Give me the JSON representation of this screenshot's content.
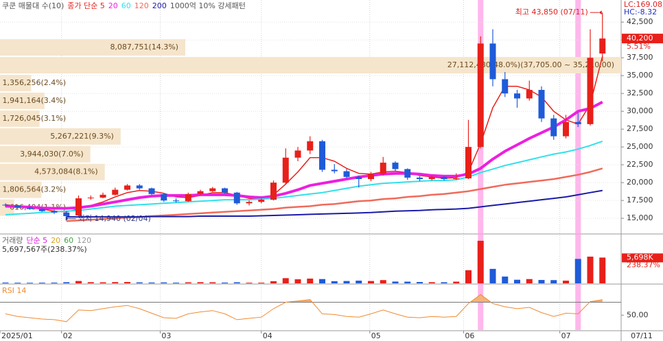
{
  "chart_data": {
    "type": "candlestick",
    "categories": [
      null,
      null,
      null,
      null,
      null,
      null,
      null,
      null,
      null,
      null,
      null,
      null,
      null,
      null,
      null,
      null,
      null,
      null,
      null,
      null,
      null,
      null,
      null,
      null,
      null,
      null,
      null,
      null,
      null,
      null,
      null,
      null,
      null,
      null,
      null,
      null,
      null,
      null,
      null,
      null,
      null,
      null,
      null,
      null,
      null,
      null,
      null,
      null,
      null,
      null
    ],
    "open": [
      16900,
      16800,
      16500,
      16300,
      16000,
      15800,
      15400,
      17800,
      17900,
      18300,
      19000,
      19600,
      19200,
      18400,
      17500,
      17400,
      18400,
      18800,
      19200,
      18600,
      17100,
      17300,
      17600,
      20000,
      23500,
      24500,
      25800,
      21800,
      21600,
      20800,
      20500,
      21200,
      22800,
      21900,
      20700,
      20500,
      20800,
      20500,
      20600,
      25000,
      39500,
      34500,
      32500,
      31800,
      33000,
      29000,
      26500,
      28500,
      28200,
      38100
    ],
    "high": [
      17100,
      16900,
      16700,
      16400,
      16200,
      16000,
      18200,
      18200,
      18600,
      19300,
      19800,
      19800,
      19300,
      18500,
      17800,
      18600,
      19000,
      19400,
      19300,
      18700,
      17500,
      17800,
      20300,
      24800,
      25000,
      26500,
      26000,
      22600,
      21900,
      21000,
      21500,
      23600,
      23000,
      22000,
      20900,
      21000,
      20900,
      21300,
      28800,
      40500,
      41500,
      35500,
      33000,
      34300,
      33500,
      29500,
      29500,
      29800,
      41500,
      43850
    ],
    "low": [
      16600,
      16400,
      16200,
      15900,
      15600,
      14940,
      15300,
      17600,
      17800,
      18200,
      18900,
      19000,
      18300,
      17300,
      17200,
      17300,
      18300,
      18700,
      18400,
      16900,
      16800,
      17100,
      17500,
      19800,
      23000,
      24000,
      21500,
      21300,
      20600,
      19300,
      20200,
      21000,
      21600,
      20400,
      20200,
      20300,
      20300,
      20400,
      20500,
      24800,
      33500,
      32000,
      30500,
      31500,
      28500,
      26000,
      26200,
      27800,
      28000,
      37000
    ],
    "close": [
      16800,
      16500,
      16300,
      16000,
      15800,
      15300,
      17800,
      17900,
      18300,
      19000,
      19600,
      19200,
      18400,
      17500,
      17400,
      18400,
      18800,
      19200,
      18600,
      17100,
      17300,
      17600,
      20000,
      23500,
      24500,
      25800,
      21800,
      21600,
      20800,
      20500,
      21200,
      22800,
      21900,
      20700,
      20500,
      20800,
      20500,
      20600,
      25000,
      39500,
      34500,
      32500,
      31800,
      33000,
      29000,
      26500,
      28500,
      28200,
      37500,
      40200
    ],
    "up_color": "#e8201a",
    "down_color": "#1f5bd8",
    "ylim": [
      12900,
      45600
    ],
    "yticks": [
      {
        "value": 15000,
        "label": "15,000"
      },
      {
        "value": 17500,
        "label": "17,500"
      },
      {
        "value": 20000,
        "label": "20,000"
      },
      {
        "value": 22500,
        "label": "22,500"
      },
      {
        "value": 25000,
        "label": "25,000"
      },
      {
        "value": 27500,
        "label": "27,500"
      },
      {
        "value": 30000,
        "label": "30,000"
      },
      {
        "value": 32500,
        "label": "32,500"
      },
      {
        "value": 35000,
        "label": "35,000"
      },
      {
        "value": 37500,
        "label": "37,500"
      },
      {
        "value": 40000,
        "label": "40,000"
      },
      {
        "value": 42500,
        "label": "42,500"
      }
    ],
    "xticks": [
      {
        "value": -0.45,
        "label": "2025/01"
      },
      {
        "value": 4.6,
        "label": "02"
      },
      {
        "value": 12.7,
        "label": "03"
      },
      {
        "value": 21,
        "label": "04"
      },
      {
        "value": 29.9,
        "label": "05"
      },
      {
        "value": 37.6,
        "label": "06"
      },
      {
        "value": 45.5,
        "label": "07"
      }
    ],
    "last_date": "07/11",
    "grid": true,
    "last_price_label": "40,200",
    "last_change_label": "5.51%",
    "indicator_labels": [
      {
        "text": "LC:169.08",
        "color": "#e02020"
      },
      {
        "text": "HC:-8.32",
        "color": "#2030c0"
      }
    ],
    "annotations": [
      {
        "text": "최고 43,850 (07/11)",
        "value": 43850,
        "index": 49,
        "side": "left",
        "color": "#e02020"
      },
      {
        "text": "최저 14,940 (02/04)",
        "value": 14940,
        "index": 5,
        "side": "right",
        "color": "#2a3a8a"
      }
    ],
    "profile": {
      "title": "쿠쿤 매물대 수(10)",
      "title_color": "#555555",
      "color": "#f5e5cc",
      "label_color": "#6b4a1e",
      "edges": [
        40200,
        37705,
        35210,
        32715,
        30220,
        27725,
        25230,
        22735,
        20240,
        17745,
        15250
      ],
      "values": [
        8087751,
        27112480,
        1356256,
        1941164,
        1726045,
        5267221,
        3944030,
        4573084,
        1806564,
        616404
      ],
      "value_labels": [
        "8,087,751(14.3%)",
        "27,112,480(48.0%)(37,705.00 ~ 35,210.00)",
        "1,356,256(2.4%)",
        "1,941,164(3.4%)",
        "1,726,045(3.1%)",
        "5,267,221(9.3%)",
        "3,944,030(7.0%)",
        "4,573,084(8.1%)",
        "1,806,564(3.2%)",
        "616,404(1.1%)"
      ]
    },
    "series": [
      {
        "name": "종가 단순 5",
        "color": "#e8201a",
        "width": 1.5,
        "values": [
          16900,
          16700,
          16500,
          16300,
          16000,
          15900,
          16300,
          16800,
          17300,
          18000,
          18600,
          18900,
          18800,
          18500,
          18000,
          17900,
          18200,
          18600,
          18600,
          18200,
          17800,
          17600,
          18300,
          19800,
          21500,
          23500,
          23500,
          23000,
          22000,
          21300,
          21200,
          21500,
          21600,
          21400,
          21000,
          20800,
          20600,
          20700,
          21500,
          25500,
          30500,
          33500,
          33500,
          33000,
          32000,
          30000,
          28800,
          28200,
          31000,
          37700
        ]
      },
      {
        "name": "20",
        "color": "#ee1ee0",
        "width": 4,
        "values": [
          16700,
          16650,
          16550,
          16450,
          16400,
          16400,
          16500,
          16700,
          17000,
          17300,
          17600,
          17900,
          18100,
          18200,
          18200,
          18200,
          18300,
          18300,
          18300,
          18200,
          18000,
          17900,
          18100,
          18500,
          19000,
          19600,
          19900,
          20200,
          20500,
          20800,
          21000,
          21200,
          21300,
          21300,
          21200,
          21000,
          20900,
          20900,
          21200,
          22000,
          23300,
          24400,
          25300,
          26200,
          27000,
          27800,
          28800,
          30000,
          30400,
          31300
        ]
      },
      {
        "name": "60",
        "color": "#30e0ea",
        "width": 2,
        "values": [
          15500,
          15600,
          15700,
          15800,
          15900,
          16000,
          16100,
          16300,
          16500,
          16700,
          16800,
          16900,
          17000,
          17100,
          17200,
          17300,
          17400,
          17500,
          17600,
          17600,
          17600,
          17700,
          17800,
          18000,
          18200,
          18400,
          18600,
          18900,
          19200,
          19500,
          19700,
          19900,
          20000,
          20100,
          20200,
          20300,
          20300,
          20400,
          20800,
          21400,
          21900,
          22400,
          22800,
          23200,
          23600,
          24000,
          24300,
          24700,
          25200,
          25800
        ]
      },
      {
        "name": "120",
        "color": "#f06a5a",
        "width": 2.5,
        "values": [
          null,
          null,
          null,
          null,
          null,
          14600,
          14700,
          14800,
          14900,
          15000,
          15100,
          15200,
          15300,
          15400,
          15500,
          15600,
          15700,
          15800,
          15900,
          16000,
          16100,
          16200,
          16300,
          16500,
          16600,
          16700,
          16900,
          17000,
          17200,
          17400,
          17500,
          17700,
          17800,
          18000,
          18100,
          18300,
          18400,
          18600,
          18800,
          19100,
          19400,
          19700,
          19900,
          20100,
          20300,
          20500,
          20800,
          21100,
          21500,
          22000
        ]
      },
      {
        "name": "200",
        "color": "#1a1aa8",
        "width": 2,
        "values": [
          null,
          null,
          null,
          null,
          null,
          15200,
          15200,
          15200,
          15200,
          15200,
          15200,
          15200,
          15250,
          15250,
          15250,
          15250,
          15300,
          15300,
          15300,
          15300,
          15300,
          15350,
          15400,
          15450,
          15500,
          15550,
          15600,
          15650,
          15700,
          15750,
          15800,
          15900,
          16000,
          16050,
          16100,
          16200,
          16250,
          16300,
          16400,
          16600,
          16800,
          17000,
          17200,
          17400,
          17600,
          17800,
          18000,
          18300,
          18600,
          18900
        ]
      }
    ],
    "pattern": {
      "name": "1000억 10% 강세패턴",
      "name_color": "#555555",
      "color": "#ff9fe6",
      "signals": [
        39,
        47
      ]
    },
    "volume": {
      "legend": [
        {
          "text": "거래량",
          "color": "#666666"
        },
        {
          "text": "단순 5",
          "color": "#e020e0"
        },
        {
          "text": "20",
          "color": "#e0a020"
        },
        {
          "text": "60",
          "color": "#40a040"
        },
        {
          "text": "120",
          "color": "#999999"
        }
      ],
      "header": "5,697,567주(238.37%)",
      "values": [
        180000,
        150000,
        140000,
        160000,
        170000,
        260000,
        520000,
        260000,
        230000,
        280000,
        300000,
        220000,
        190000,
        210000,
        160000,
        230000,
        260000,
        240000,
        180000,
        240000,
        150000,
        160000,
        480000,
        1150000,
        900000,
        1050000,
        950000,
        480000,
        520000,
        600000,
        520000,
        720000,
        400000,
        380000,
        300000,
        260000,
        250000,
        380000,
        2900000,
        9400000,
        3200000,
        1500000,
        800000,
        950000,
        750000,
        720000,
        600000,
        5400000,
        5900000,
        5697567
      ],
      "ylim": [
        0,
        10600000
      ],
      "last_label": "5,698K",
      "change_label": "238.37%"
    },
    "rsi": {
      "title": "RSI 14",
      "color": "#f08a30",
      "fill": "#f5b27a",
      "values": [
        52,
        48,
        46,
        44,
        43,
        40,
        58,
        57,
        60,
        63,
        65,
        60,
        53,
        46,
        45,
        52,
        55,
        57,
        52,
        43,
        45,
        47,
        60,
        70,
        72,
        74,
        52,
        51,
        48,
        47,
        52,
        58,
        52,
        47,
        46,
        48,
        47,
        48,
        68,
        82,
        68,
        63,
        60,
        62,
        54,
        48,
        53,
        52,
        71,
        74
      ],
      "ylim": [
        27,
        96
      ],
      "yticks": [
        {
          "value": 50,
          "label": "50.00"
        }
      ],
      "guide": 70
    }
  }
}
